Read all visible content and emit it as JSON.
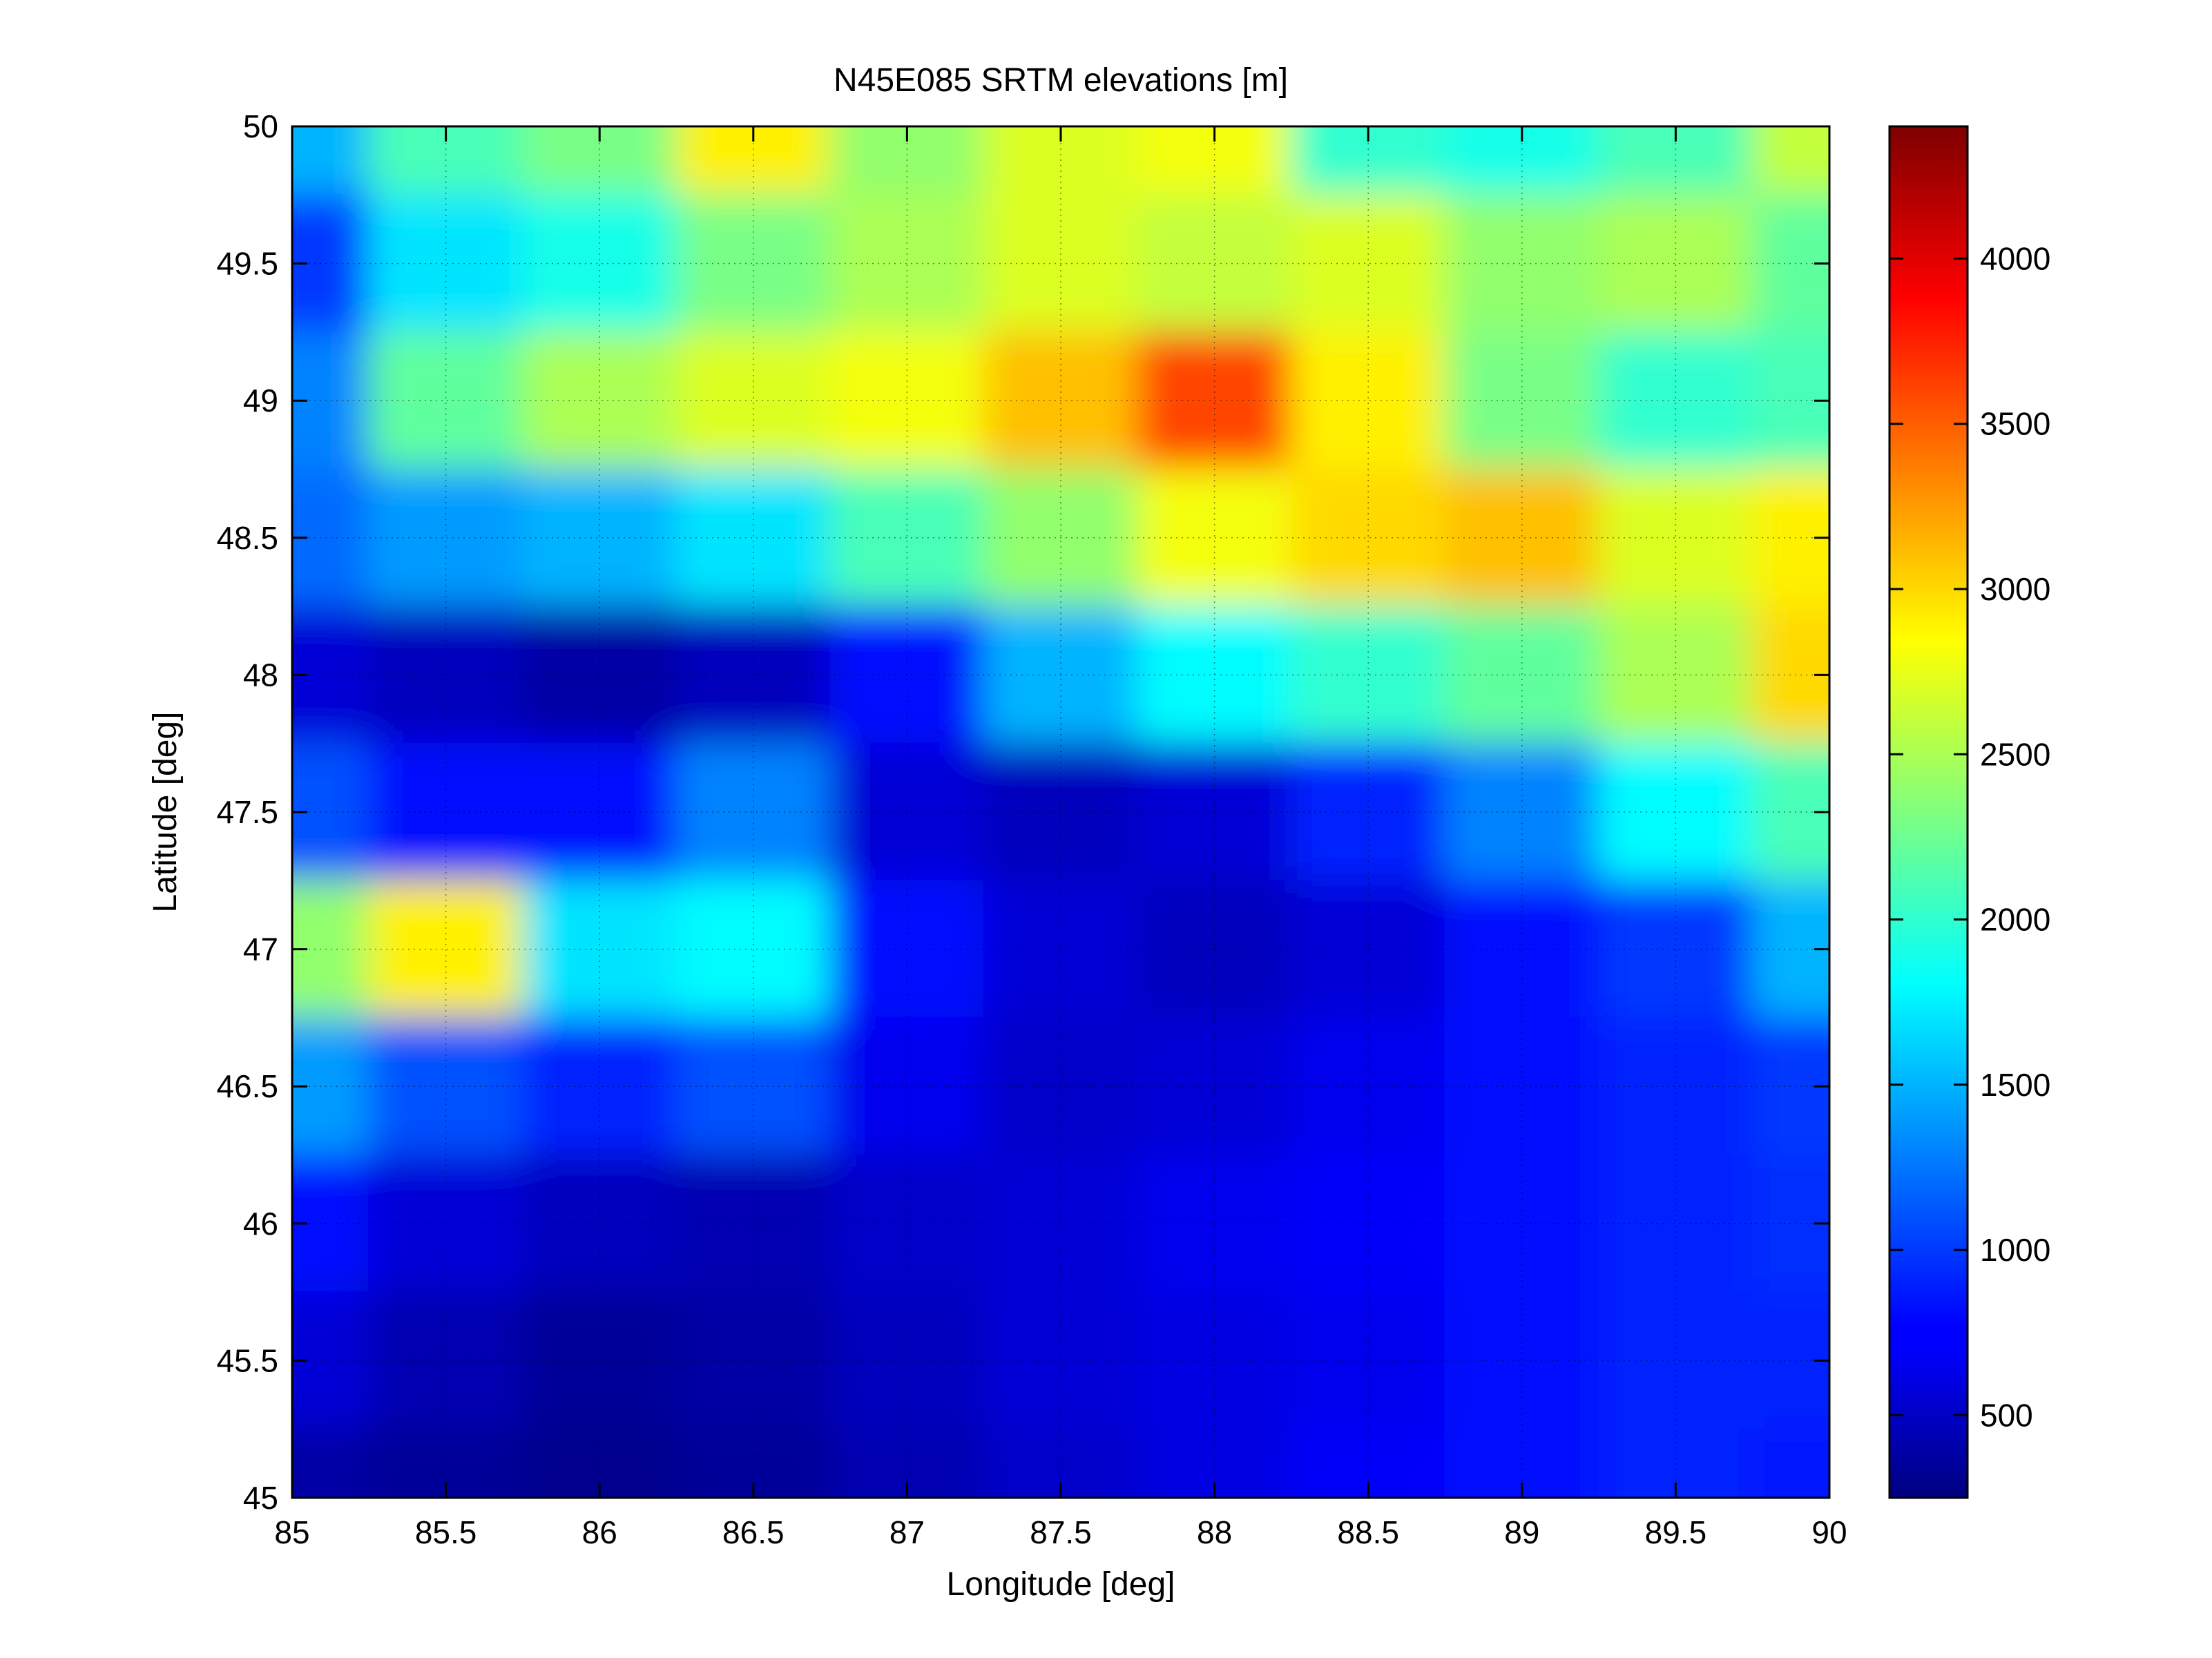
{
  "chart_data": {
    "type": "heatmap",
    "title": "N45E085 SRTM elevations [m]",
    "xlabel": "Longitude [deg]",
    "ylabel": "Latitude [deg]",
    "xlim": [
      85,
      90
    ],
    "ylim": [
      45,
      50
    ],
    "x_ticks": [
      85,
      85.5,
      86,
      86.5,
      87,
      87.5,
      88,
      88.5,
      89,
      89.5,
      90
    ],
    "x_tick_labels": [
      "85",
      "85.5",
      "86",
      "86.5",
      "87",
      "87.5",
      "88",
      "88.5",
      "89",
      "89.5",
      "90"
    ],
    "y_ticks": [
      45,
      45.5,
      46,
      46.5,
      47,
      47.5,
      48,
      48.5,
      49,
      49.5,
      50
    ],
    "y_tick_labels": [
      "45",
      "45.5",
      "46",
      "46.5",
      "47",
      "47.5",
      "48",
      "48.5",
      "49",
      "49.5",
      "50"
    ],
    "grid": true,
    "colormap": "jet",
    "colorbar": {
      "range": [
        250,
        4400
      ],
      "ticks": [
        500,
        1000,
        1500,
        2000,
        2500,
        3000,
        3500,
        4000
      ],
      "tick_labels": [
        "500",
        "1000",
        "1500",
        "2000",
        "2500",
        "3000",
        "3500",
        "4000"
      ],
      "placement": "right"
    },
    "elevation_grid": {
      "description_rows": "rows from latitude 50 (top) to 45 (bottom), columns from longitude 85 to 90, elevations in meters (approximate)",
      "lon": [
        85,
        85.5,
        86,
        86.5,
        87,
        87.5,
        88,
        88.5,
        89,
        89.5,
        90
      ],
      "lat": [
        50,
        49.5,
        49,
        48.5,
        48,
        47.5,
        47,
        46.5,
        46,
        45.5,
        45
      ],
      "values": [
        [
          1500,
          2100,
          2300,
          2900,
          2400,
          2700,
          2800,
          2000,
          1900,
          2100,
          2600
        ],
        [
          1000,
          1700,
          1900,
          2300,
          2500,
          2700,
          2600,
          2700,
          2400,
          2500,
          2200
        ],
        [
          1300,
          2200,
          2500,
          2700,
          2800,
          3100,
          3600,
          2900,
          2300,
          2000,
          2100
        ],
        [
          1200,
          1400,
          1500,
          1700,
          2100,
          2400,
          2800,
          3000,
          3100,
          2700,
          2900
        ],
        [
          600,
          500,
          400,
          500,
          800,
          1500,
          1800,
          2000,
          2200,
          2500,
          3000
        ],
        [
          1100,
          800,
          800,
          1300,
          600,
          500,
          600,
          900,
          1300,
          1800,
          2100
        ],
        [
          2400,
          2900,
          1700,
          1800,
          800,
          600,
          500,
          600,
          800,
          1000,
          1500
        ],
        [
          1400,
          1100,
          900,
          1100,
          700,
          550,
          600,
          700,
          800,
          900,
          1000
        ],
        [
          800,
          600,
          500,
          450,
          550,
          600,
          700,
          750,
          800,
          900,
          950
        ],
        [
          600,
          450,
          350,
          400,
          500,
          600,
          650,
          700,
          800,
          900,
          900
        ],
        [
          400,
          350,
          300,
          350,
          450,
          550,
          650,
          750,
          800,
          900,
          850
        ]
      ]
    }
  }
}
